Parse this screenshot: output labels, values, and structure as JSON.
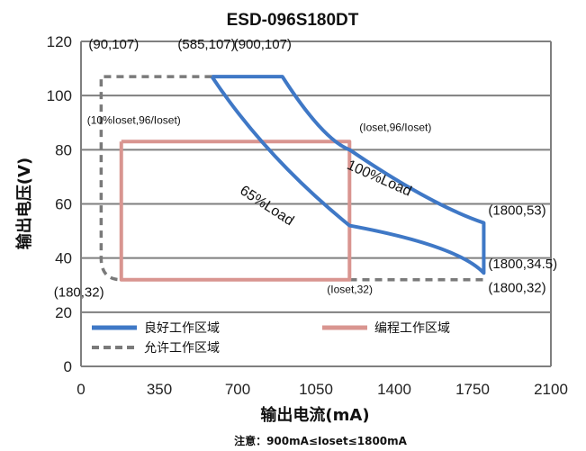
{
  "chart_data": {
    "type": "line",
    "title": "ESD-096S180DT",
    "xlabel": "输出电流(mA)",
    "ylabel": "输出电压(V)",
    "note": "注意：900mA≤Ioset≤1800mA",
    "xlim": [
      0,
      2100
    ],
    "ylim": [
      0,
      120
    ],
    "x_ticks": [
      "0",
      "350",
      "700",
      "1050",
      "1400",
      "1750",
      "2100"
    ],
    "y_ticks": [
      "0",
      "20",
      "40",
      "60",
      "80",
      "100",
      "120"
    ],
    "grid": "horizontal",
    "legend_position": "bottom-inside",
    "series": [
      {
        "name": "良好工作区域",
        "color": "#3f78c6",
        "style": "solid",
        "points": [
          [
            585,
            107
          ],
          [
            900,
            107
          ],
          [
            1200,
            80
          ],
          [
            1800,
            53
          ],
          [
            1800,
            34.5
          ],
          [
            1200,
            52
          ],
          [
            585,
            107
          ]
        ]
      },
      {
        "name": "编程工作区域",
        "color": "#d99590",
        "style": "solid",
        "points": [
          [
            180,
            83
          ],
          [
            1200,
            83
          ],
          [
            1200,
            32
          ],
          [
            180,
            32
          ],
          [
            180,
            83
          ]
        ]
      },
      {
        "name": "允许工作区域",
        "color": "#7a7a7a",
        "style": "dashed",
        "points": [
          [
            585,
            107
          ],
          [
            90,
            107
          ],
          [
            90,
            40
          ],
          [
            110,
            33
          ],
          [
            180,
            32
          ],
          [
            1800,
            32
          ]
        ]
      }
    ],
    "annotations": [
      {
        "text": "(90,107)",
        "x": 90,
        "y": 107,
        "size": "large"
      },
      {
        "text": "(585,107)",
        "x": 585,
        "y": 107,
        "size": "large"
      },
      {
        "text": "(900,107)",
        "x": 900,
        "y": 107,
        "size": "large"
      },
      {
        "text": "(10%Ioset,96/Ioset)",
        "x": 180,
        "y": 83,
        "size": "small"
      },
      {
        "text": "(Ioset,96/Ioset)",
        "x": 1200,
        "y": 83,
        "size": "small"
      },
      {
        "text": "(1800,53)",
        "x": 1800,
        "y": 53,
        "size": "large"
      },
      {
        "text": "(1800,34.5)",
        "x": 1800,
        "y": 34.5,
        "size": "large"
      },
      {
        "text": "(1800,32)",
        "x": 1800,
        "y": 32,
        "size": "large"
      },
      {
        "text": "(180,32)",
        "x": 180,
        "y": 32,
        "size": "large"
      },
      {
        "text": "(Ioset,32)",
        "x": 1200,
        "y": 32,
        "size": "small"
      }
    ],
    "curve_labels": [
      {
        "text": "100%Load",
        "x": 1325,
        "y": 68,
        "angle": 24
      },
      {
        "text": "65%Load",
        "x": 820,
        "y": 58,
        "angle": 33
      }
    ]
  }
}
